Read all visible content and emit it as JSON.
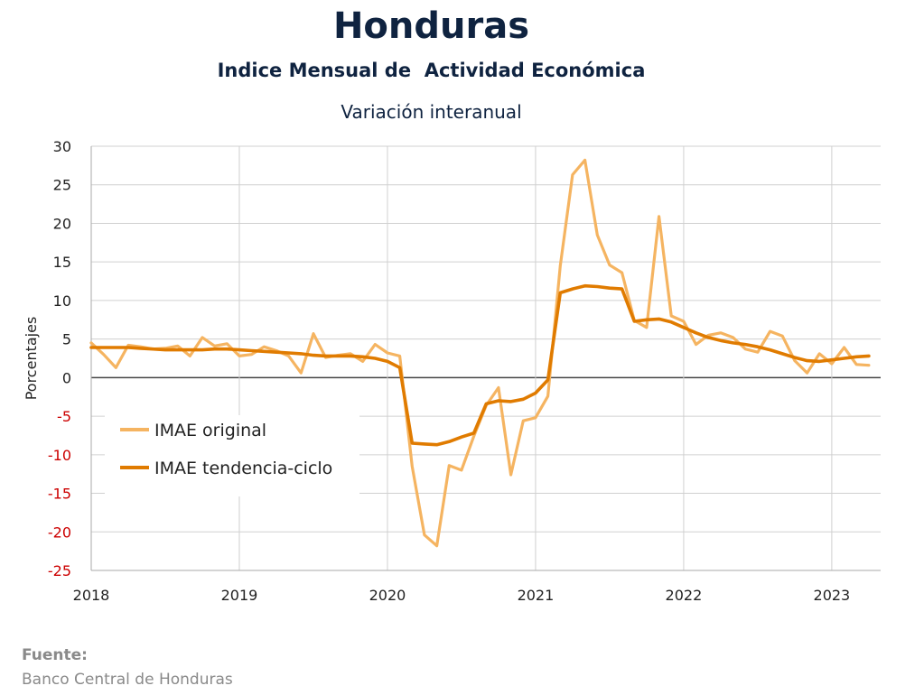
{
  "header": {
    "title": "Honduras",
    "subtitle": "Indice Mensual de  Actividad Económica",
    "subtitle2": "Variación interanual"
  },
  "source": {
    "label": "Fuente:",
    "text": "Banco Central de Honduras"
  },
  "colors": {
    "original": "#f5b461",
    "trend": "#e07b00",
    "negative_ticks": "#cc0000",
    "title": "#0f2340"
  },
  "chart_data": {
    "type": "line",
    "ylabel": "Porcentajes",
    "ylim": [
      -25,
      30
    ],
    "yticks": [
      30,
      25,
      20,
      15,
      10,
      5,
      0,
      -5,
      -10,
      -15,
      -20,
      -25
    ],
    "xlim": [
      2018.0,
      2023.33
    ],
    "xticks": [
      "2018",
      "2019",
      "2020",
      "2021",
      "2022",
      "2023"
    ],
    "grid": true,
    "legend_position": "lower-left",
    "series": [
      {
        "name": "IMAE original",
        "start": "2018-01",
        "values": [
          4.5,
          3.0,
          1.3,
          4.2,
          4.0,
          3.7,
          3.8,
          4.1,
          2.8,
          5.2,
          4.1,
          4.4,
          2.8,
          3.0,
          4.0,
          3.5,
          2.8,
          0.6,
          5.7,
          2.6,
          2.9,
          3.1,
          2.1,
          4.3,
          3.2,
          2.8,
          -11.5,
          -20.4,
          -21.8,
          -11.4,
          -12.0,
          -7.6,
          -3.6,
          -1.3,
          -12.6,
          -5.6,
          -5.2,
          -2.4,
          14.5,
          26.3,
          28.2,
          18.5,
          14.6,
          13.6,
          7.4,
          6.5,
          20.9,
          8.0,
          7.3,
          4.3,
          5.5,
          5.8,
          5.2,
          3.7,
          3.3,
          6.0,
          5.4,
          2.2,
          0.6,
          3.1,
          1.8,
          3.9,
          1.7,
          1.6
        ]
      },
      {
        "name": "IMAE tendencia-ciclo",
        "start": "2018-01",
        "values": [
          3.9,
          3.9,
          3.9,
          3.9,
          3.8,
          3.7,
          3.6,
          3.6,
          3.6,
          3.6,
          3.7,
          3.7,
          3.6,
          3.5,
          3.4,
          3.3,
          3.2,
          3.1,
          2.9,
          2.8,
          2.8,
          2.8,
          2.7,
          2.5,
          2.1,
          1.3,
          -8.5,
          -8.6,
          -8.7,
          -8.3,
          -7.7,
          -7.2,
          -3.4,
          -3.0,
          -3.1,
          -2.8,
          -2.0,
          -0.3,
          11.0,
          11.5,
          11.9,
          11.8,
          11.6,
          11.5,
          7.3,
          7.5,
          7.6,
          7.2,
          6.5,
          5.8,
          5.2,
          4.8,
          4.5,
          4.3,
          4.0,
          3.6,
          3.1,
          2.6,
          2.2,
          2.1,
          2.3,
          2.5,
          2.7,
          2.8
        ]
      }
    ]
  }
}
